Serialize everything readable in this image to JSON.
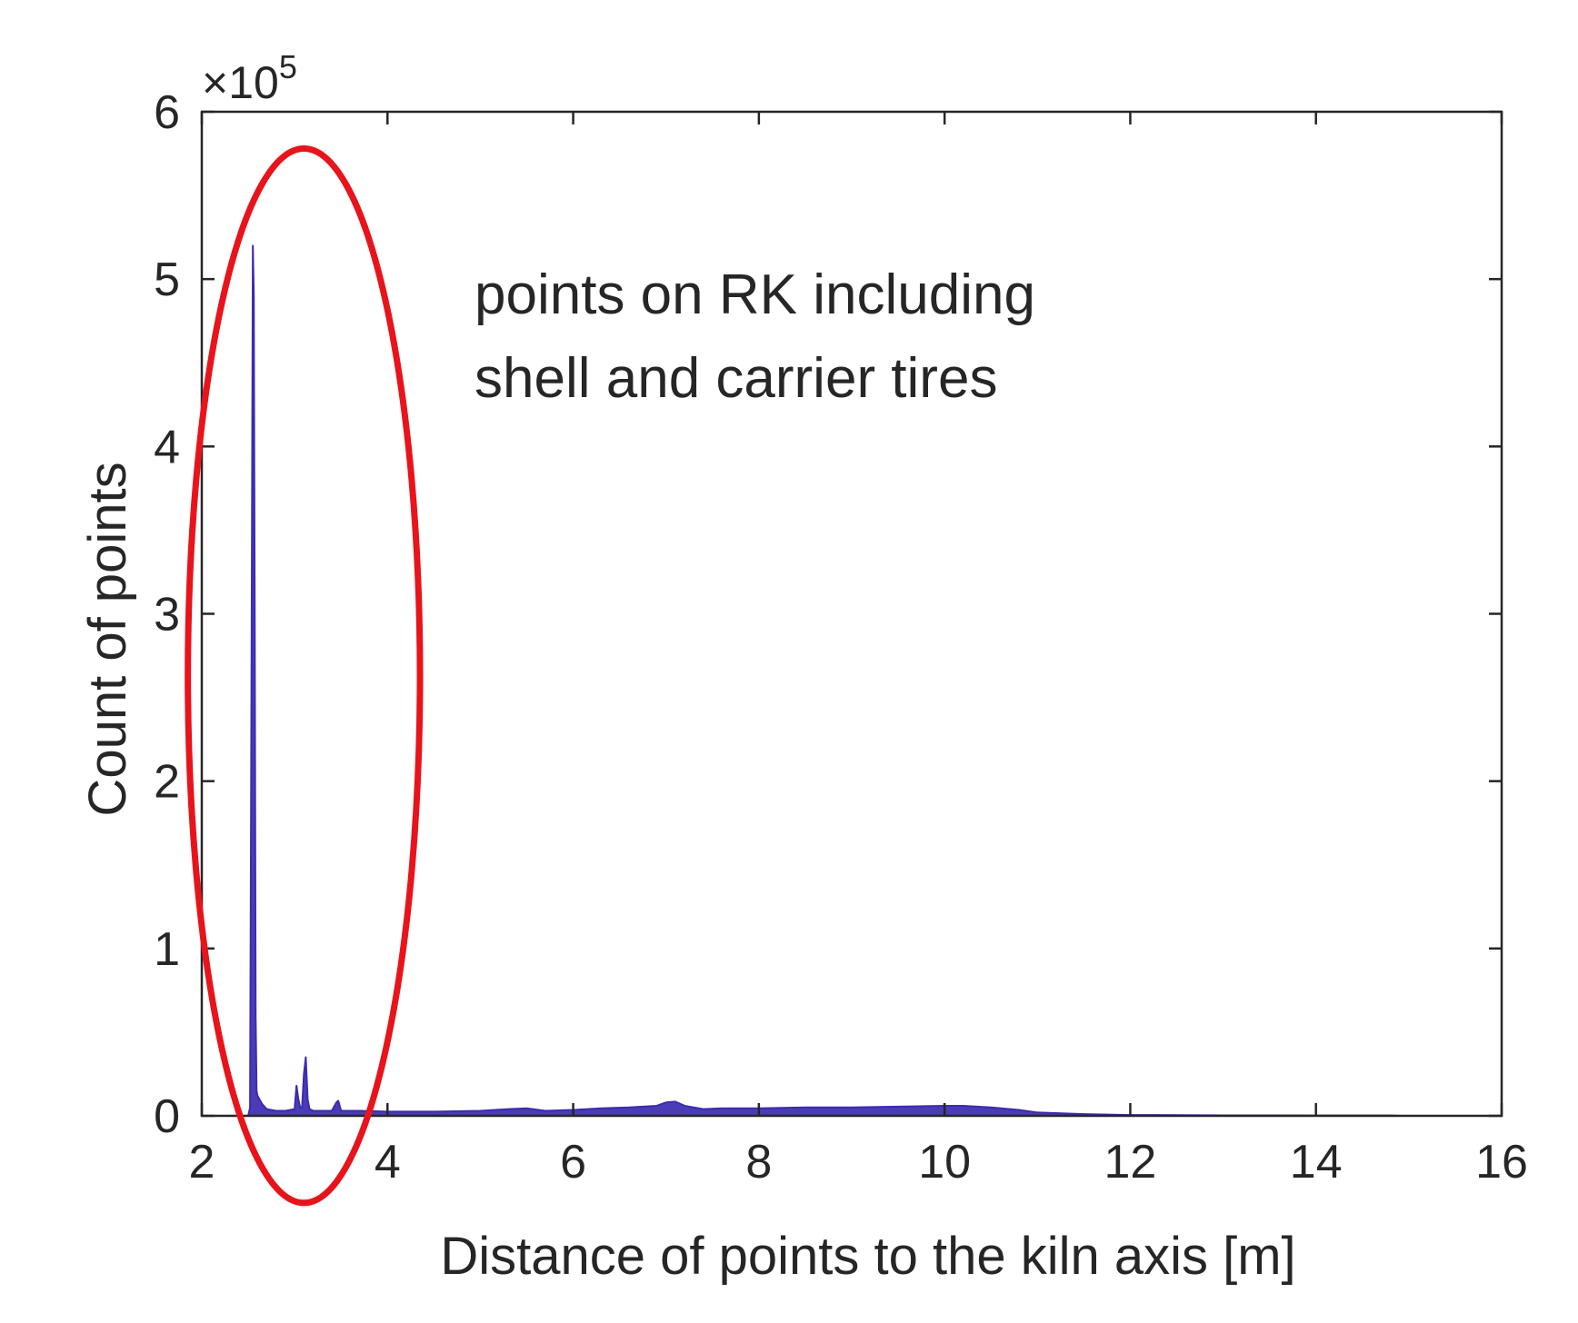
{
  "chart_data": {
    "type": "area",
    "xlabel": "Distance of points to the kiln axis [m]",
    "ylabel": "Count of points",
    "y_multiplier": {
      "base": "10",
      "exponent": "5",
      "prefix": "×"
    },
    "xlim": [
      2,
      16
    ],
    "ylim": [
      0,
      6
    ],
    "xticks": [
      2,
      4,
      6,
      8,
      10,
      12,
      14,
      16
    ],
    "yticks": [
      0,
      1,
      2,
      3,
      4,
      5,
      6
    ],
    "grid": false,
    "box": true,
    "annotation": {
      "lines": [
        "points on RK including",
        "shell and carrier tires"
      ]
    },
    "highlight_ellipse": {
      "center_x": 3.1,
      "center_y": 2.63,
      "radius_x": 1.25,
      "radius_y": 3.15,
      "color": "#e8141b"
    },
    "series": [
      {
        "color": "#3b2bb0",
        "x": [
          2.0,
          2.5,
          2.52,
          2.54,
          2.55,
          2.56,
          2.57,
          2.58,
          2.59,
          2.6,
          2.62,
          2.65,
          2.7,
          2.8,
          2.9,
          3.0,
          3.02,
          3.04,
          3.06,
          3.08,
          3.1,
          3.12,
          3.14,
          3.16,
          3.2,
          3.4,
          3.45,
          3.47,
          3.5,
          3.7,
          4.0,
          4.5,
          5.0,
          5.3,
          5.5,
          5.7,
          6.0,
          6.3,
          6.6,
          6.9,
          7.0,
          7.1,
          7.2,
          7.4,
          7.6,
          8.0,
          8.5,
          9.0,
          9.5,
          10.0,
          10.2,
          10.5,
          10.8,
          11.0,
          11.5,
          12.0,
          13.0,
          14.0,
          14.8,
          14.9
        ],
        "y": [
          0,
          0,
          0.05,
          3.4,
          5.2,
          4.9,
          3.0,
          0.6,
          0.15,
          0.12,
          0.1,
          0.07,
          0.04,
          0.03,
          0.03,
          0.04,
          0.18,
          0.1,
          0.05,
          0.05,
          0.25,
          0.35,
          0.1,
          0.04,
          0.03,
          0.03,
          0.08,
          0.09,
          0.03,
          0.03,
          0.025,
          0.025,
          0.03,
          0.04,
          0.045,
          0.03,
          0.035,
          0.045,
          0.05,
          0.06,
          0.08,
          0.085,
          0.06,
          0.04,
          0.045,
          0.045,
          0.05,
          0.05,
          0.055,
          0.06,
          0.06,
          0.05,
          0.035,
          0.02,
          0.01,
          0.005,
          0.003,
          0.002,
          0.002,
          0
        ]
      }
    ]
  }
}
